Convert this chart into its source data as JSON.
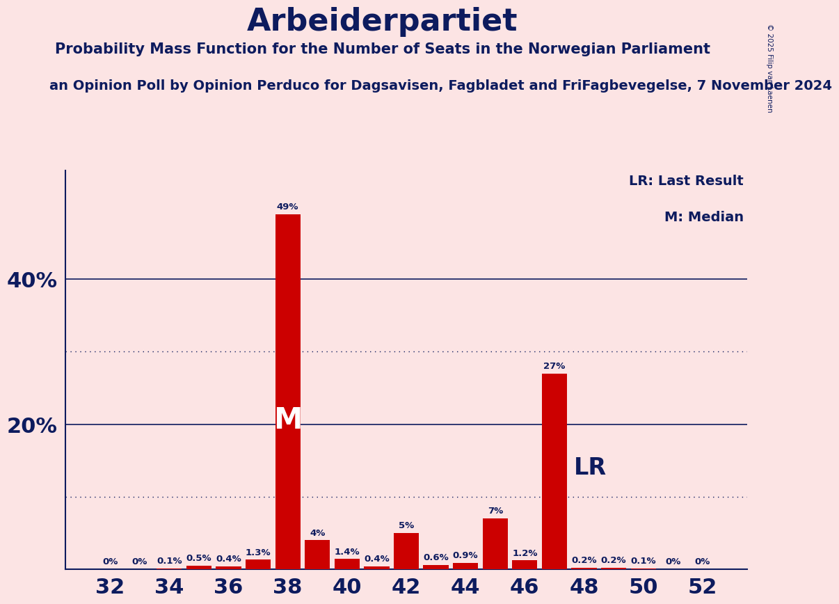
{
  "title": "Arbeiderpartiet",
  "subtitle1": "Probability Mass Function for the Number of Seats in the Norwegian Parliament",
  "subtitle2": "an Opinion Poll by Opinion Perduco for Dagsavisen, Fagbladet and FriFagbevegelse, 7 November 2024",
  "copyright": "© 2025 Filip van Laenen",
  "legend_lr": "LR: Last Result",
  "legend_m": "M: Median",
  "background_color": "#fce4e4",
  "bar_color": "#cc0000",
  "text_color": "#0d1b5e",
  "seats": [
    32,
    33,
    34,
    35,
    36,
    37,
    38,
    39,
    40,
    41,
    42,
    43,
    44,
    45,
    46,
    47,
    48,
    49,
    50,
    51,
    52
  ],
  "values": [
    0.0,
    0.0,
    0.1,
    0.5,
    0.4,
    1.3,
    49.0,
    4.0,
    1.4,
    0.4,
    5.0,
    0.6,
    0.9,
    7.0,
    1.2,
    27.0,
    0.2,
    0.2,
    0.1,
    0.0,
    0.0
  ],
  "labels": [
    "0%",
    "0%",
    "0.1%",
    "0.5%",
    "0.4%",
    "1.3%",
    "49%",
    "4%",
    "1.4%",
    "0.4%",
    "5%",
    "0.6%",
    "0.9%",
    "7%",
    "1.2%",
    "27%",
    "0.2%",
    "0.2%",
    "0.1%",
    "0%",
    "0%"
  ],
  "show_zero_labels": [
    true,
    true,
    false,
    false,
    false,
    false,
    false,
    false,
    false,
    false,
    false,
    false,
    false,
    false,
    false,
    false,
    false,
    false,
    false,
    true,
    true
  ],
  "median_seat": 38,
  "lr_seat": 47,
  "ylim": [
    0,
    55
  ],
  "ytick_positions": [
    20,
    40
  ],
  "ytick_labels": [
    "20%",
    "40%"
  ],
  "solid_gridlines": [
    20,
    40
  ],
  "dotted_gridlines": [
    10,
    30
  ],
  "xtick_seats": [
    32,
    34,
    36,
    38,
    40,
    42,
    44,
    46,
    48,
    50,
    52
  ]
}
